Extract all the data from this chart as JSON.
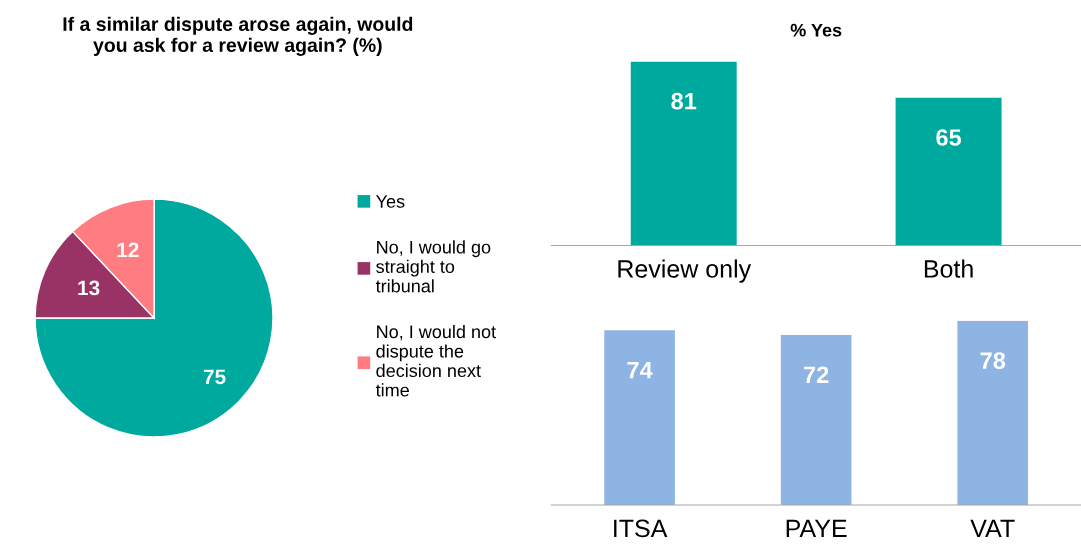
{
  "chart_data": [
    {
      "type": "pie",
      "title": "If a similar dispute arose again, would\nyou ask for a review again? (%)",
      "categories": [
        "Yes",
        "No, I would go\nstraight to\ntribunal",
        "No, I would not\ndispute the\ndecision next\ntime"
      ],
      "values": [
        75,
        13,
        12
      ],
      "colors": [
        "#00a99d",
        "#993366",
        "#ff7c80"
      ],
      "data_labels": true,
      "legend": "right"
    },
    {
      "type": "bar",
      "title": "% Yes",
      "categories": [
        "Review only",
        "Both"
      ],
      "values": [
        81,
        65
      ],
      "color": "#00a99d",
      "data_labels": true
    },
    {
      "type": "bar",
      "categories": [
        "ITSA",
        "PAYE",
        "VAT"
      ],
      "values": [
        74,
        72,
        78
      ],
      "color": "#8eb4e3",
      "data_labels": true
    }
  ]
}
